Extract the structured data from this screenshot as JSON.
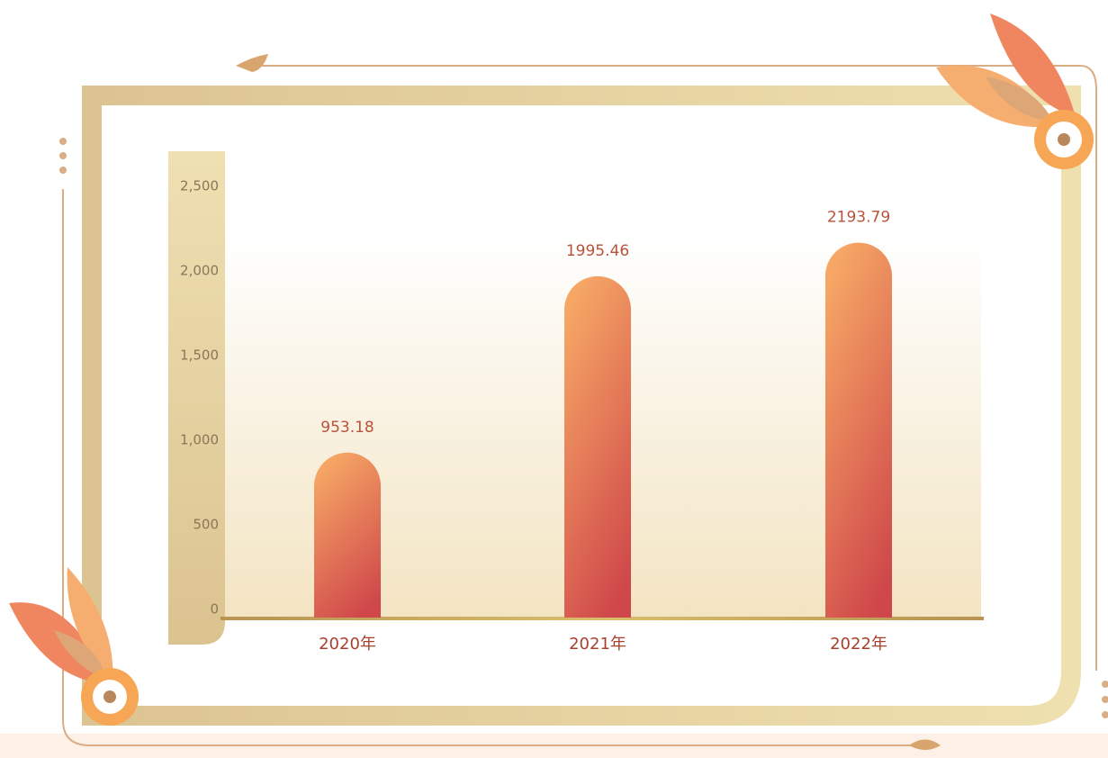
{
  "chart_data": {
    "type": "bar",
    "categories": [
      "2020年",
      "2021年",
      "2022年"
    ],
    "values": [
      953.18,
      1995.46,
      2193.79
    ],
    "ylim": [
      0,
      2500
    ],
    "yticks": [
      0,
      500,
      {
        "value": 1000,
        "label": "1,000"
      },
      {
        "value": 1500,
        "label": "1,500"
      },
      {
        "value": 2000,
        "label": "2,000"
      },
      {
        "value": 2500,
        "label": "2,500"
      }
    ],
    "grid": false
  }
}
